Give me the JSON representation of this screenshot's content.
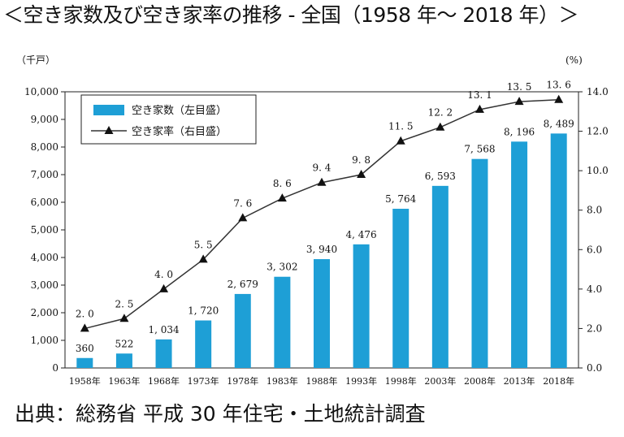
{
  "title": "＜空き家数及び空き家率の推移 - 全国（1958 年～ 2018 年）＞",
  "source": "出典：総務省 平成 30 年住宅・土地統計調査",
  "chart_data": {
    "type": "bar",
    "categories": [
      "1958年",
      "1963年",
      "1968年",
      "1973年",
      "1978年",
      "1983年",
      "1988年",
      "1993年",
      "1998年",
      "2003年",
      "2008年",
      "2013年",
      "2018年"
    ],
    "y_unit_left": "（千戸）",
    "y_unit_right": "(%)",
    "ylim_left": [
      0,
      10000
    ],
    "ylim_right": [
      0,
      14
    ],
    "y_ticks_left": [
      "0",
      "1,000",
      "2,000",
      "3,000",
      "4,000",
      "5,000",
      "6,000",
      "7,000",
      "8,000",
      "9,000",
      "10,000"
    ],
    "y_ticks_right": [
      "0.0",
      "2.0",
      "4.0",
      "6.0",
      "8.0",
      "10.0",
      "12.0",
      "14.0"
    ],
    "legend_position": "top-left",
    "grid": false,
    "series": [
      {
        "name": "空き家数（左目盛）",
        "type": "bar",
        "axis": "left",
        "color": "#1e9fd6",
        "values": [
          360,
          522,
          1034,
          1720,
          2679,
          3302,
          3940,
          4476,
          5764,
          6593,
          7568,
          8196,
          8489
        ],
        "labels": [
          "360",
          "522",
          "1, 034",
          "1, 720",
          "2, 679",
          "3, 302",
          "3, 940",
          "4, 476",
          "5, 764",
          "6, 593",
          "7, 568",
          "8, 196",
          "8, 489"
        ]
      },
      {
        "name": "空き家率（右目盛）",
        "type": "line",
        "axis": "right",
        "color": "#333333",
        "marker": "triangle",
        "values": [
          2.0,
          2.5,
          4.0,
          5.5,
          7.6,
          8.6,
          9.4,
          9.8,
          11.5,
          12.2,
          13.1,
          13.5,
          13.6
        ],
        "labels": [
          "2. 0",
          "2. 5",
          "4. 0",
          "5. 5",
          "7. 6",
          "8. 6",
          "9. 4",
          "9. 8",
          "11. 5",
          "12. 2",
          "13. 1",
          "13. 5",
          "13. 6"
        ]
      }
    ]
  }
}
